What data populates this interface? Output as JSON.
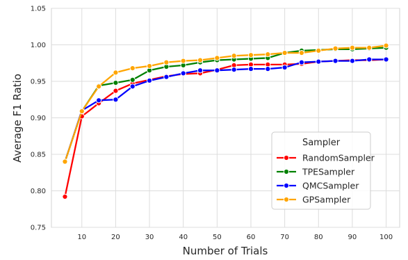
{
  "chart_data": {
    "type": "line",
    "xlabel": "Number of Trials",
    "ylabel": "Average F1 Ratio",
    "xlim": [
      1,
      104
    ],
    "ylim": [
      0.75,
      1.05
    ],
    "x_ticks": [
      10,
      20,
      30,
      40,
      50,
      60,
      70,
      80,
      90,
      100
    ],
    "y_ticks": [
      0.75,
      0.8,
      0.85,
      0.9,
      0.95,
      1.0,
      1.05
    ],
    "grid": true,
    "legend": {
      "title": "Sampler",
      "placement": "lower-right"
    },
    "x": [
      5,
      10,
      15,
      20,
      25,
      30,
      35,
      40,
      45,
      50,
      55,
      60,
      65,
      70,
      75,
      80,
      85,
      90,
      95,
      100
    ],
    "series": [
      {
        "name": "RandomSampler",
        "color": "#ff0000",
        "values": [
          0.792,
          0.902,
          0.92,
          0.937,
          0.947,
          0.952,
          0.957,
          0.96,
          0.961,
          0.966,
          0.972,
          0.973,
          0.973,
          0.973,
          0.974,
          0.977,
          0.978,
          0.979,
          0.979,
          0.98
        ]
      },
      {
        "name": "TPESampler",
        "color": "#008000",
        "values": [
          0.84,
          0.909,
          0.944,
          0.948,
          0.952,
          0.965,
          0.97,
          0.972,
          0.976,
          0.979,
          0.98,
          0.981,
          0.982,
          0.989,
          0.992,
          0.993,
          0.994,
          0.994,
          0.995,
          0.996
        ]
      },
      {
        "name": "QMCSampler",
        "color": "#0000ff",
        "values": [
          0.84,
          0.91,
          0.924,
          0.925,
          0.943,
          0.951,
          0.956,
          0.961,
          0.965,
          0.965,
          0.966,
          0.967,
          0.967,
          0.969,
          0.976,
          0.977,
          0.978,
          0.978,
          0.98,
          0.98
        ]
      },
      {
        "name": "GPSampler",
        "color": "#ffa500",
        "values": [
          0.84,
          0.909,
          0.943,
          0.962,
          0.968,
          0.971,
          0.976,
          0.978,
          0.979,
          0.982,
          0.985,
          0.986,
          0.987,
          0.989,
          0.989,
          0.992,
          0.995,
          0.996,
          0.996,
          0.999
        ]
      }
    ]
  }
}
